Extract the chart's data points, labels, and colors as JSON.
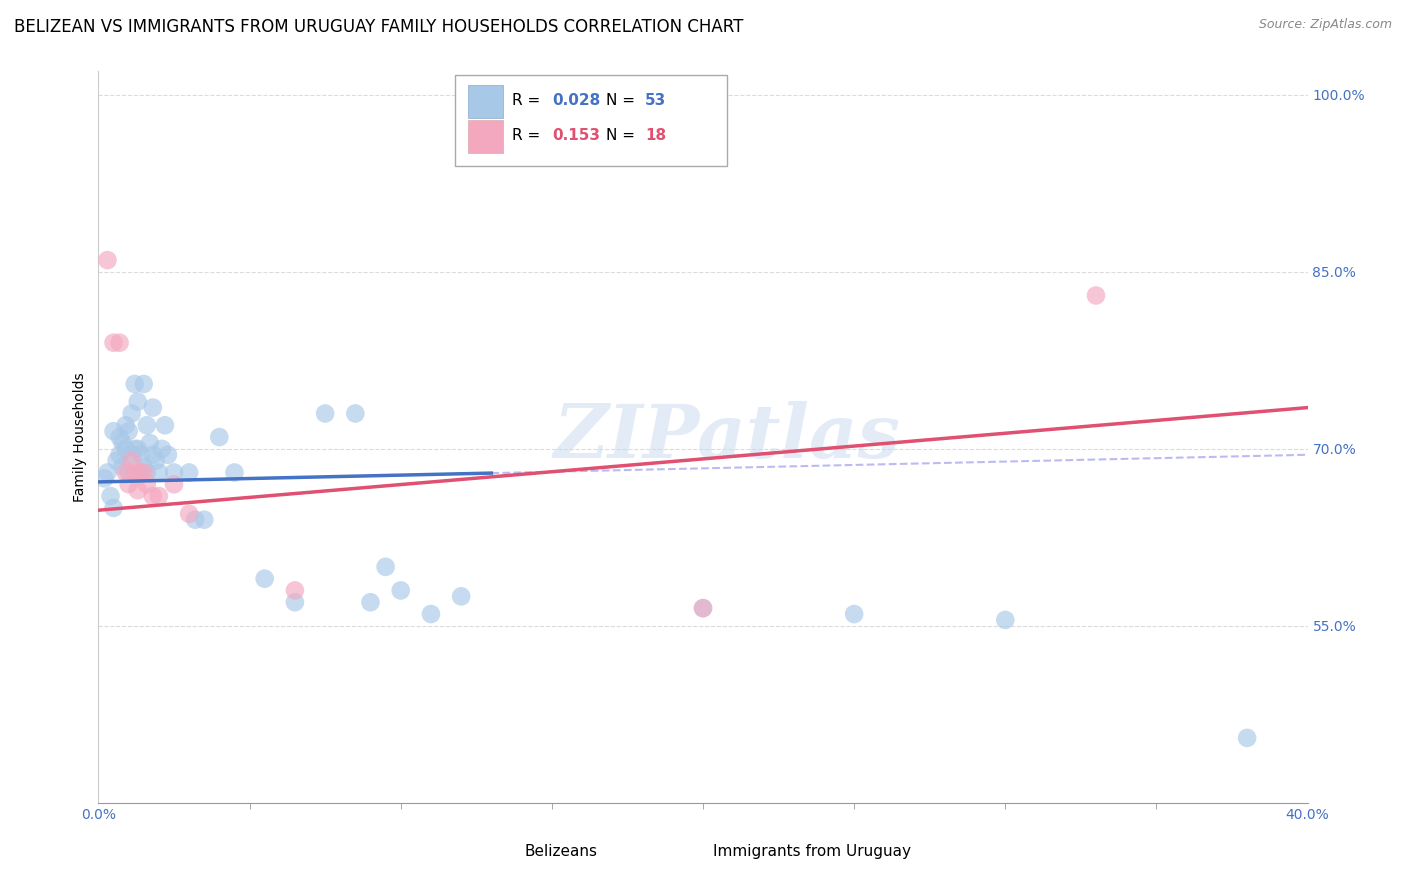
{
  "title": "BELIZEAN VS IMMIGRANTS FROM URUGUAY FAMILY HOUSEHOLDS CORRELATION CHART",
  "source": "Source: ZipAtlas.com",
  "ylabel": "Family Households",
  "xlim": [
    0.0,
    0.4
  ],
  "ylim": [
    0.4,
    1.02
  ],
  "yticks": [
    0.55,
    0.7,
    0.85,
    1.0
  ],
  "ytick_labels": [
    "55.0%",
    "70.0%",
    "85.0%",
    "100.0%"
  ],
  "xtick_positions": [
    0.0,
    0.2,
    0.4
  ],
  "xtick_labels_ends": [
    "0.0%",
    "",
    "40.0%"
  ],
  "color_blue": "#a8c8e8",
  "color_pink": "#f4a8c0",
  "color_blue_line": "#4472c4",
  "color_pink_line": "#e05070",
  "color_text_blue": "#4472c4",
  "color_text_pink": "#e05070",
  "background": "#ffffff",
  "grid_color": "#cccccc",
  "watermark": "ZIPatlas",
  "blue_x": [
    0.002,
    0.003,
    0.004,
    0.005,
    0.005,
    0.006,
    0.007,
    0.007,
    0.008,
    0.008,
    0.009,
    0.009,
    0.01,
    0.01,
    0.011,
    0.011,
    0.012,
    0.012,
    0.013,
    0.013,
    0.014,
    0.014,
    0.015,
    0.015,
    0.016,
    0.016,
    0.017,
    0.018,
    0.018,
    0.019,
    0.02,
    0.021,
    0.022,
    0.023,
    0.025,
    0.03,
    0.032,
    0.035,
    0.04,
    0.045,
    0.055,
    0.065,
    0.075,
    0.085,
    0.09,
    0.095,
    0.1,
    0.11,
    0.12,
    0.2,
    0.25,
    0.3,
    0.38
  ],
  "blue_y": [
    0.675,
    0.68,
    0.66,
    0.65,
    0.715,
    0.69,
    0.695,
    0.71,
    0.685,
    0.705,
    0.7,
    0.72,
    0.68,
    0.715,
    0.695,
    0.73,
    0.7,
    0.755,
    0.7,
    0.74,
    0.68,
    0.695,
    0.685,
    0.755,
    0.68,
    0.72,
    0.705,
    0.695,
    0.735,
    0.69,
    0.68,
    0.7,
    0.72,
    0.695,
    0.68,
    0.68,
    0.64,
    0.64,
    0.71,
    0.68,
    0.59,
    0.57,
    0.73,
    0.73,
    0.57,
    0.6,
    0.58,
    0.56,
    0.575,
    0.565,
    0.56,
    0.555,
    0.455
  ],
  "pink_x": [
    0.003,
    0.005,
    0.007,
    0.009,
    0.01,
    0.011,
    0.012,
    0.013,
    0.014,
    0.015,
    0.016,
    0.018,
    0.02,
    0.025,
    0.03,
    0.065,
    0.2,
    0.33
  ],
  "pink_y": [
    0.86,
    0.79,
    0.79,
    0.68,
    0.67,
    0.69,
    0.68,
    0.665,
    0.68,
    0.68,
    0.67,
    0.66,
    0.66,
    0.67,
    0.645,
    0.58,
    0.565,
    0.83
  ],
  "blue_line_x_end": 0.13,
  "title_fontsize": 12,
  "axis_label_fontsize": 10,
  "tick_fontsize": 10
}
